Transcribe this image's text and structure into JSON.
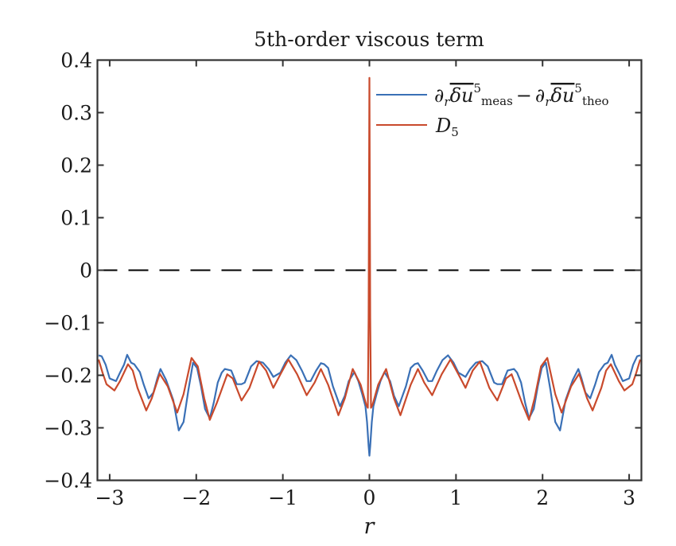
{
  "chart_data": {
    "type": "line",
    "title": "5th-order viscous term",
    "xlabel": "r",
    "ylabel": "",
    "xlim": [
      -3.14159,
      3.14159
    ],
    "ylim": [
      -0.4,
      0.4
    ],
    "xticks": [
      -3,
      -2,
      -1,
      0,
      1,
      2,
      3
    ],
    "xtick_labels": [
      "−3",
      "−2",
      "−1",
      "0",
      "1",
      "2",
      "3"
    ],
    "yticks": [
      0.4,
      0.3,
      0.2,
      0.1,
      0,
      -0.1,
      -0.2,
      -0.3,
      -0.4
    ],
    "ytick_labels": [
      "0.4",
      "0.3",
      "0.2",
      "0.1",
      "0",
      "−0.1",
      "−0.2",
      "−0.3",
      "−0.4"
    ],
    "grid": false,
    "legend_position": "upper right",
    "reference_lines": [
      {
        "type": "horizontal",
        "y": 0,
        "style": "dashed",
        "color": "#000000"
      }
    ],
    "series": [
      {
        "name": "∂r δu^5 meas − ∂r δu^5 theo",
        "legend_label": {
          "part1": "∂",
          "sub1": "r",
          "part2": "δu",
          "sup1": "5",
          "sub2": "meas",
          "minus": " − ",
          "part3": "∂",
          "sub3": "r",
          "part4": "δu",
          "sup2": "5",
          "sub4": "theo"
        },
        "color": "#3A70B6",
        "x": [
          -3.128,
          -3.092,
          -3.046,
          -3.0,
          -2.927,
          -2.881,
          -2.835,
          -2.798,
          -2.752,
          -2.716,
          -2.651,
          -2.606,
          -2.55,
          -2.495,
          -2.45,
          -2.413,
          -2.349,
          -2.266,
          -2.202,
          -2.147,
          -2.092,
          -2.037,
          -1.991,
          -1.945,
          -1.899,
          -1.844,
          -1.798,
          -1.752,
          -1.706,
          -1.67,
          -1.596,
          -1.532,
          -1.477,
          -1.44,
          -1.367,
          -1.303,
          -1.229,
          -1.165,
          -1.11,
          -1.028,
          -0.972,
          -0.908,
          -0.844,
          -0.78,
          -0.725,
          -0.679,
          -0.615,
          -0.56,
          -0.523,
          -0.477,
          -0.422,
          -0.339,
          -0.284,
          -0.239,
          -0.174,
          -0.128,
          -0.083,
          -0.046,
          -0.028,
          -0.009,
          0,
          0.009,
          0.028,
          0.046,
          0.083,
          0.128,
          0.174,
          0.239,
          0.284,
          0.339,
          0.422,
          0.477,
          0.523,
          0.56,
          0.615,
          0.679,
          0.725,
          0.78,
          0.844,
          0.908,
          0.972,
          1.028,
          1.11,
          1.165,
          1.229,
          1.303,
          1.367,
          1.44,
          1.477,
          1.532,
          1.596,
          1.67,
          1.706,
          1.752,
          1.798,
          1.844,
          1.899,
          1.945,
          1.991,
          2.037,
          2.092,
          2.147,
          2.202,
          2.266,
          2.349,
          2.413,
          2.45,
          2.495,
          2.55,
          2.606,
          2.651,
          2.716,
          2.752,
          2.798,
          2.835,
          2.881,
          2.927,
          3.0,
          3.046,
          3.092,
          3.128
        ],
        "y": [
          -0.162,
          -0.164,
          -0.18,
          -0.206,
          -0.211,
          -0.195,
          -0.18,
          -0.161,
          -0.176,
          -0.179,
          -0.194,
          -0.218,
          -0.244,
          -0.233,
          -0.206,
          -0.188,
          -0.209,
          -0.247,
          -0.305,
          -0.289,
          -0.229,
          -0.176,
          -0.186,
          -0.221,
          -0.264,
          -0.282,
          -0.252,
          -0.214,
          -0.195,
          -0.188,
          -0.191,
          -0.217,
          -0.217,
          -0.214,
          -0.183,
          -0.173,
          -0.176,
          -0.188,
          -0.203,
          -0.195,
          -0.176,
          -0.162,
          -0.171,
          -0.191,
          -0.211,
          -0.211,
          -0.191,
          -0.177,
          -0.179,
          -0.186,
          -0.221,
          -0.259,
          -0.239,
          -0.211,
          -0.194,
          -0.211,
          -0.236,
          -0.259,
          -0.289,
          -0.335,
          -0.353,
          -0.335,
          -0.289,
          -0.259,
          -0.236,
          -0.211,
          -0.194,
          -0.211,
          -0.239,
          -0.259,
          -0.221,
          -0.186,
          -0.179,
          -0.177,
          -0.191,
          -0.211,
          -0.211,
          -0.191,
          -0.171,
          -0.162,
          -0.176,
          -0.195,
          -0.203,
          -0.188,
          -0.176,
          -0.173,
          -0.183,
          -0.214,
          -0.217,
          -0.217,
          -0.191,
          -0.188,
          -0.195,
          -0.214,
          -0.252,
          -0.282,
          -0.264,
          -0.221,
          -0.186,
          -0.176,
          -0.229,
          -0.289,
          -0.305,
          -0.247,
          -0.209,
          -0.188,
          -0.206,
          -0.233,
          -0.244,
          -0.218,
          -0.194,
          -0.179,
          -0.176,
          -0.161,
          -0.18,
          -0.195,
          -0.211,
          -0.206,
          -0.18,
          -0.164,
          -0.162
        ]
      },
      {
        "name": "D5",
        "legend_label": {
          "main": "D",
          "sub": "5"
        },
        "color": "#C94A2C",
        "x": [
          -3.128,
          -3.083,
          -3.037,
          -2.945,
          -2.881,
          -2.789,
          -2.734,
          -2.679,
          -2.578,
          -2.514,
          -2.422,
          -2.33,
          -2.22,
          -2.147,
          -2.055,
          -1.982,
          -1.908,
          -1.844,
          -1.761,
          -1.642,
          -1.578,
          -1.477,
          -1.385,
          -1.275,
          -1.193,
          -1.11,
          -1.028,
          -0.936,
          -0.835,
          -0.725,
          -0.633,
          -0.56,
          -0.477,
          -0.358,
          -0.284,
          -0.193,
          -0.101,
          -0.037,
          -0.018,
          -0.009,
          0,
          0.009,
          0.018,
          0.037,
          0.101,
          0.193,
          0.284,
          0.358,
          0.477,
          0.56,
          0.633,
          0.725,
          0.835,
          0.936,
          1.028,
          1.11,
          1.193,
          1.275,
          1.385,
          1.477,
          1.578,
          1.642,
          1.761,
          1.844,
          1.908,
          1.982,
          2.055,
          2.147,
          2.22,
          2.33,
          2.422,
          2.514,
          2.578,
          2.679,
          2.734,
          2.789,
          2.881,
          2.945,
          3.037,
          3.083,
          3.128
        ],
        "y": [
          -0.17,
          -0.195,
          -0.217,
          -0.229,
          -0.211,
          -0.179,
          -0.191,
          -0.224,
          -0.267,
          -0.244,
          -0.197,
          -0.221,
          -0.271,
          -0.236,
          -0.167,
          -0.183,
          -0.244,
          -0.285,
          -0.252,
          -0.198,
          -0.206,
          -0.248,
          -0.224,
          -0.174,
          -0.191,
          -0.224,
          -0.198,
          -0.17,
          -0.198,
          -0.238,
          -0.214,
          -0.188,
          -0.218,
          -0.276,
          -0.244,
          -0.188,
          -0.218,
          -0.256,
          -0.262,
          -0.09,
          0.366,
          -0.09,
          -0.262,
          -0.256,
          -0.218,
          -0.188,
          -0.244,
          -0.276,
          -0.218,
          -0.188,
          -0.214,
          -0.238,
          -0.198,
          -0.17,
          -0.198,
          -0.224,
          -0.191,
          -0.174,
          -0.224,
          -0.248,
          -0.206,
          -0.198,
          -0.252,
          -0.285,
          -0.244,
          -0.183,
          -0.167,
          -0.236,
          -0.271,
          -0.221,
          -0.197,
          -0.244,
          -0.267,
          -0.224,
          -0.191,
          -0.179,
          -0.211,
          -0.229,
          -0.217,
          -0.195,
          -0.17
        ]
      }
    ]
  },
  "figure": {
    "title": "5th-order viscous term",
    "xlabel": "r",
    "legend": {
      "entry1": {
        "d1": "∂",
        "r1": "r",
        "du1": "δu",
        "p1": "5",
        "s1": "meas",
        "minus": "−",
        "d2": "∂",
        "r2": "r",
        "du2": "δu",
        "p2": "5",
        "s2": "theo"
      },
      "entry2": {
        "main": "D",
        "sub": "5"
      }
    }
  }
}
